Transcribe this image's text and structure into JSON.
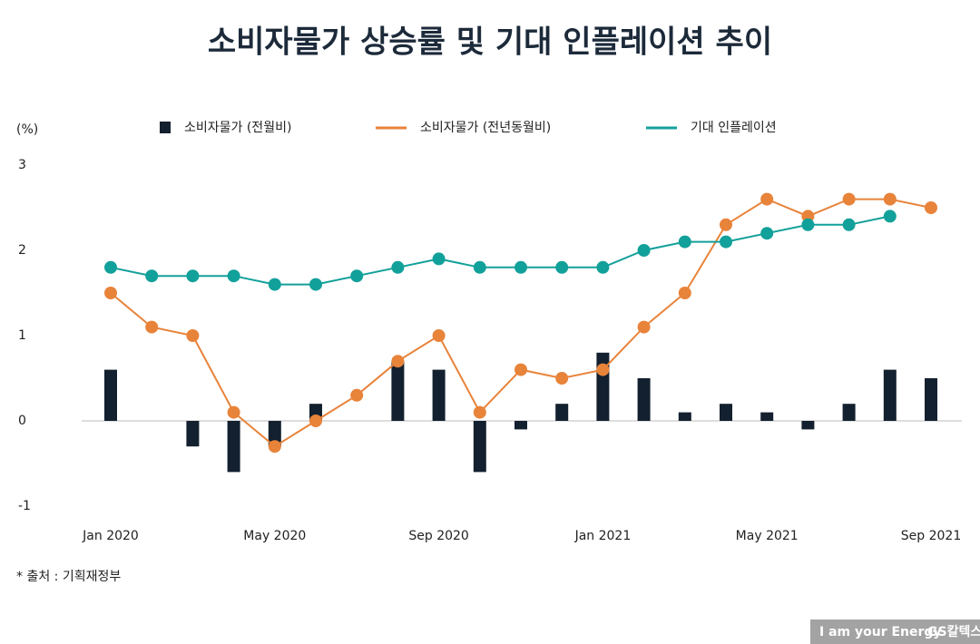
{
  "chart_data": {
    "type": "combo",
    "title": "소비자물가 상승률 및 기대 인플레이션 추이",
    "y_label": "(%)",
    "source": "* 출처 : 기획재정부",
    "brand": {
      "tagline": "I am your Energy",
      "name": "GS칼텍스"
    },
    "categories": [
      "Jan 2020",
      null,
      null,
      null,
      "May 2020",
      null,
      null,
      null,
      "Sep 2020",
      null,
      null,
      null,
      "Jan 2021",
      null,
      null,
      null,
      "May 2021",
      null,
      null,
      null,
      "Sep 2021"
    ],
    "ylim": [
      -1,
      3
    ],
    "yticks": [
      -1,
      0,
      1,
      2,
      3
    ],
    "grid": false,
    "series": [
      {
        "name": "소비자물가 (전월비)",
        "type": "bar",
        "color": "#13202f",
        "values": [
          0.6,
          0,
          -0.3,
          -0.6,
          -0.3,
          0.2,
          0,
          0.7,
          0.6,
          -0.6,
          -0.1,
          0.2,
          0.8,
          0.5,
          0.1,
          0.2,
          0.1,
          -0.1,
          0.2,
          0.6,
          0.5
        ]
      },
      {
        "name": "소비자물가 (전년동월비)",
        "type": "line",
        "color": "#e8833a",
        "values": [
          1.5,
          1.1,
          1.0,
          0.1,
          -0.3,
          0.0,
          0.3,
          0.7,
          1.0,
          0.1,
          0.6,
          0.5,
          0.6,
          1.1,
          1.5,
          2.3,
          2.6,
          2.4,
          2.6,
          2.6,
          2.5
        ]
      },
      {
        "name": "기대 인플레이션",
        "type": "line",
        "color": "#12a09a",
        "values": [
          1.8,
          1.7,
          1.7,
          1.7,
          1.6,
          1.6,
          1.7,
          1.8,
          1.9,
          1.8,
          1.8,
          1.8,
          1.8,
          2.0,
          2.1,
          2.1,
          2.2,
          2.3,
          2.3,
          2.4,
          null
        ]
      }
    ]
  }
}
